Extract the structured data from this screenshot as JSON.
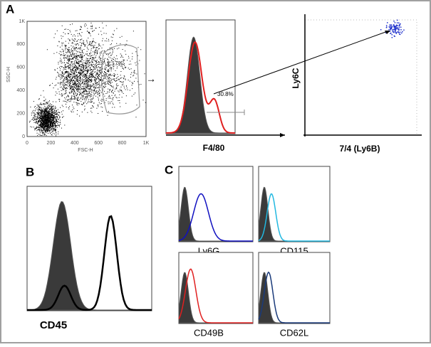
{
  "panels": {
    "A": {
      "label": "A",
      "scatter": {
        "y_ticks": [
          "1K",
          "800",
          "600",
          "400",
          "200",
          "0"
        ],
        "x_ticks": [
          "0",
          "200",
          "400",
          "600",
          "800",
          "1K"
        ],
        "y_title": "SSC-H",
        "x_title": "FSC-H",
        "gate": "2.17%"
      },
      "histogram": {
        "x_title": "F4/80",
        "gate": "30.8%"
      },
      "dotplot": {
        "y_title": "Ly6C",
        "x_title": "7/4 (Ly6B)"
      }
    },
    "B": {
      "label": "B",
      "x_title": "CD45"
    },
    "C": {
      "label": "C",
      "histograms": [
        {
          "x_title": "Ly6G"
        },
        {
          "x_title": "CD115"
        },
        {
          "x_title": "CD49B"
        },
        {
          "x_title": "CD62L"
        }
      ]
    }
  }
}
